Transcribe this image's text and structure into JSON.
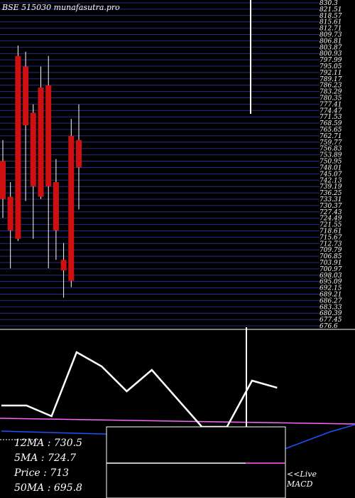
{
  "chart_data": [
    {
      "type": "candlestick",
      "title": "BSE 515030  munafasutra.pro",
      "price_axis_labels": [
        "830.3",
        "821.51",
        "818.57",
        "815.61",
        "812.71",
        "809.73",
        "806.81",
        "803.87",
        "800.93",
        "797.99",
        "795.05",
        "792.11",
        "789.17",
        "786.23",
        "783.29",
        "780.35",
        "777.41",
        "774.47",
        "771.53",
        "768.59",
        "765.65",
        "762.71",
        "759.77",
        "756.83",
        "753.89",
        "750.95",
        "748.01",
        "745.07",
        "742.13",
        "739.19",
        "736.25",
        "733.31",
        "730.37",
        "727.43",
        "724.49",
        "721.55",
        "718.61",
        "715.67",
        "712.73",
        "709.79",
        "706.85",
        "703.91",
        "700.97",
        "698.03",
        "695.09",
        "692.15",
        "689.21",
        "686.27",
        "683.33",
        "680.39",
        "677.45",
        "676.6"
      ],
      "y_range": [
        676.6,
        830.3
      ],
      "candles": [
        {
          "open": 755,
          "close": 737,
          "high": 765,
          "low": 728
        },
        {
          "open": 738,
          "close": 722,
          "high": 745,
          "low": 704
        },
        {
          "open": 805,
          "close": 718,
          "high": 810,
          "low": 717
        },
        {
          "open": 800,
          "close": 772,
          "high": 807,
          "low": 736
        },
        {
          "open": 778,
          "close": 743,
          "high": 782,
          "low": 718
        },
        {
          "open": 790,
          "close": 738,
          "high": 800,
          "low": 737
        },
        {
          "open": 791,
          "close": 743,
          "high": 805,
          "low": 704
        },
        {
          "open": 745,
          "close": 722,
          "high": 756,
          "low": 708
        },
        {
          "open": 708,
          "close": 703,
          "high": 716,
          "low": 690
        },
        {
          "open": 767,
          "close": 698,
          "high": 775,
          "low": 695
        },
        {
          "open": 765,
          "close": 752,
          "high": 782,
          "low": 732
        }
      ]
    },
    {
      "type": "line",
      "title": "MACD",
      "series": [
        {
          "name": "MACD",
          "values": [
            0.2,
            0.2,
            0.05,
            0.95,
            0.75,
            0.4,
            0.7,
            0.3,
            -0.1,
            -0.1,
            0.55,
            0.45
          ]
        },
        {
          "name": "Signal",
          "values": [
            0.04,
            0.03,
            0.02,
            0.01,
            0.0,
            -0.01,
            -0.02,
            -0.03,
            -0.05,
            -0.1,
            -0.2,
            -0.25
          ]
        }
      ]
    }
  ],
  "indicators": {
    "ma12": "12MA : 730.5",
    "ma5": "5MA : 724.7",
    "price": "Price   : 713",
    "ma50": "50MA : 695.8",
    "live_label": "<<Live",
    "macd_label": "MACD"
  },
  "colors": {
    "background": "#000000",
    "grid": "#2a2a8a",
    "bull": "#ffffff",
    "bear": "#d01010",
    "text": "#ffffff",
    "magenta": "#ff66ff",
    "blue": "#1e50ff"
  }
}
